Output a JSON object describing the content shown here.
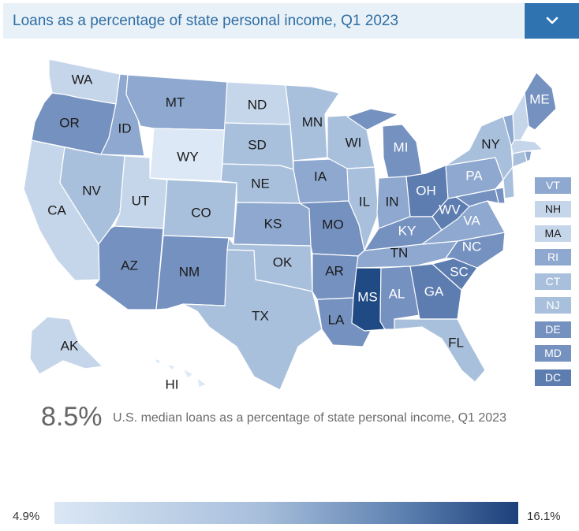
{
  "header": {
    "title": "Loans as a percentage of state personal income, Q1 2023",
    "dropdown_icon": "chevron-down-icon"
  },
  "summary": {
    "value": "8.5%",
    "description": "U.S. median loans as a percentage of state personal income, Q1 2023"
  },
  "legend": {
    "min_label": "4.9%",
    "max_label": "16.1%",
    "color_low": "#dbe7f5",
    "color_high": "#1d3f7b"
  },
  "colors": {
    "l1": "#dce8f5",
    "l2": "#c6d6ea",
    "l3": "#a9c0dd",
    "l4": "#8ea8cf",
    "l5": "#7591c0",
    "l6": "#5d7cb0",
    "l7": "#1f4a84",
    "border": "#ffffff",
    "header_bg": "#e9f1f8",
    "header_text": "#2f6ea3",
    "button_bg": "#2f74b0"
  },
  "states": [
    {
      "id": "WA",
      "label": "WA",
      "level": 2
    },
    {
      "id": "OR",
      "label": "OR",
      "level": 5
    },
    {
      "id": "CA",
      "label": "CA",
      "level": 2
    },
    {
      "id": "ID",
      "label": "ID",
      "level": 4
    },
    {
      "id": "NV",
      "label": "NV",
      "level": 3
    },
    {
      "id": "MT",
      "label": "MT",
      "level": 4
    },
    {
      "id": "WY",
      "label": "WY",
      "level": 1
    },
    {
      "id": "UT",
      "label": "UT",
      "level": 2
    },
    {
      "id": "AZ",
      "label": "AZ",
      "level": 5
    },
    {
      "id": "CO",
      "label": "CO",
      "level": 3
    },
    {
      "id": "NM",
      "label": "NM",
      "level": 5
    },
    {
      "id": "ND",
      "label": "ND",
      "level": 2
    },
    {
      "id": "SD",
      "label": "SD",
      "level": 3
    },
    {
      "id": "NE",
      "label": "NE",
      "level": 3
    },
    {
      "id": "KS",
      "label": "KS",
      "level": 4
    },
    {
      "id": "OK",
      "label": "OK",
      "level": 3
    },
    {
      "id": "TX",
      "label": "TX",
      "level": 3
    },
    {
      "id": "MN",
      "label": "MN",
      "level": 3
    },
    {
      "id": "IA",
      "label": "IA",
      "level": 4
    },
    {
      "id": "MO",
      "label": "MO",
      "level": 5
    },
    {
      "id": "AR",
      "label": "AR",
      "level": 5
    },
    {
      "id": "LA",
      "label": "LA",
      "level": 5
    },
    {
      "id": "WI",
      "label": "WI",
      "level": 3
    },
    {
      "id": "IL",
      "label": "IL",
      "level": 3
    },
    {
      "id": "MI",
      "label": "MI",
      "level": 5
    },
    {
      "id": "IN",
      "label": "IN",
      "level": 4
    },
    {
      "id": "OH",
      "label": "OH",
      "level": 6
    },
    {
      "id": "KY",
      "label": "KY",
      "level": 5
    },
    {
      "id": "TN",
      "label": "TN",
      "level": 4
    },
    {
      "id": "MS",
      "label": "MS",
      "level": 7
    },
    {
      "id": "AL",
      "label": "AL",
      "level": 5
    },
    {
      "id": "GA",
      "label": "GA",
      "level": 6
    },
    {
      "id": "FL",
      "label": "FL",
      "level": 3
    },
    {
      "id": "SC",
      "label": "SC",
      "level": 6
    },
    {
      "id": "NC",
      "label": "NC",
      "level": 5
    },
    {
      "id": "VA",
      "label": "VA",
      "level": 4
    },
    {
      "id": "WV",
      "label": "WV",
      "level": 6
    },
    {
      "id": "PA",
      "label": "PA",
      "level": 4
    },
    {
      "id": "NY",
      "label": "NY",
      "level": 3
    },
    {
      "id": "ME",
      "label": "ME",
      "level": 5
    },
    {
      "id": "AK",
      "label": "AK",
      "level": 2
    },
    {
      "id": "HI",
      "label": "HI",
      "level": 1
    }
  ],
  "small_states": [
    {
      "label": "VT",
      "level": 4
    },
    {
      "label": "NH",
      "level": 2
    },
    {
      "label": "MA",
      "level": 2
    },
    {
      "label": "RI",
      "level": 4
    },
    {
      "label": "CT",
      "level": 3
    },
    {
      "label": "NJ",
      "level": 3
    },
    {
      "label": "DE",
      "level": 5
    },
    {
      "label": "MD",
      "level": 5
    },
    {
      "label": "DC",
      "level": 6
    }
  ]
}
